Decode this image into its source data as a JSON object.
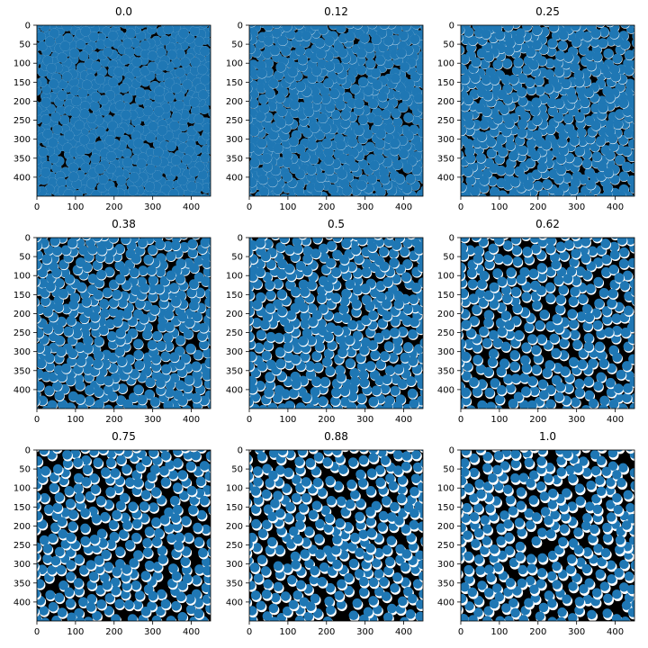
{
  "chart_data": [
    {
      "type": "scatter",
      "title": "0.0",
      "point_color": "#1f77b4",
      "background": "#000000",
      "overlay_color": "#ffffff",
      "reveal_fraction": 0.0,
      "density": 1.0,
      "seed": 101,
      "xlim": [
        0,
        450
      ],
      "ylim": [
        450,
        0
      ],
      "xticks": [
        0,
        100,
        200,
        300,
        400
      ],
      "yticks": [
        0,
        50,
        100,
        150,
        200,
        250,
        300,
        350,
        400
      ]
    },
    {
      "type": "scatter",
      "title": "0.12",
      "point_color": "#1f77b4",
      "background": "#000000",
      "overlay_color": "#ffffff",
      "reveal_fraction": 0.12,
      "density": 0.96,
      "seed": 202,
      "xlim": [
        0,
        450
      ],
      "ylim": [
        450,
        0
      ],
      "xticks": [
        0,
        100,
        200,
        300,
        400
      ],
      "yticks": [
        0,
        50,
        100,
        150,
        200,
        250,
        300,
        350,
        400
      ]
    },
    {
      "type": "scatter",
      "title": "0.25",
      "point_color": "#1f77b4",
      "background": "#000000",
      "overlay_color": "#ffffff",
      "reveal_fraction": 0.25,
      "density": 0.82,
      "seed": 303,
      "xlim": [
        0,
        450
      ],
      "ylim": [
        450,
        0
      ],
      "xticks": [
        0,
        100,
        200,
        300,
        400
      ],
      "yticks": [
        0,
        50,
        100,
        150,
        200,
        250,
        300,
        350,
        400
      ]
    },
    {
      "type": "scatter",
      "title": "0.38",
      "point_color": "#1f77b4",
      "background": "#000000",
      "overlay_color": "#ffffff",
      "reveal_fraction": 0.38,
      "density": 0.72,
      "seed": 404,
      "xlim": [
        0,
        450
      ],
      "ylim": [
        450,
        0
      ],
      "xticks": [
        0,
        100,
        200,
        300,
        400
      ],
      "yticks": [
        0,
        50,
        100,
        150,
        200,
        250,
        300,
        350,
        400
      ]
    },
    {
      "type": "scatter",
      "title": "0.5",
      "point_color": "#1f77b4",
      "background": "#000000",
      "overlay_color": "#ffffff",
      "reveal_fraction": 0.5,
      "density": 0.66,
      "seed": 505,
      "xlim": [
        0,
        450
      ],
      "ylim": [
        450,
        0
      ],
      "xticks": [
        0,
        100,
        200,
        300,
        400
      ],
      "yticks": [
        0,
        50,
        100,
        150,
        200,
        250,
        300,
        350,
        400
      ]
    },
    {
      "type": "scatter",
      "title": "0.62",
      "point_color": "#1f77b4",
      "background": "#000000",
      "overlay_color": "#ffffff",
      "reveal_fraction": 0.62,
      "density": 0.55,
      "seed": 606,
      "xlim": [
        0,
        450
      ],
      "ylim": [
        450,
        0
      ],
      "xticks": [
        0,
        100,
        200,
        300,
        400
      ],
      "yticks": [
        0,
        50,
        100,
        150,
        200,
        250,
        300,
        350,
        400
      ]
    },
    {
      "type": "scatter",
      "title": "0.75",
      "point_color": "#1f77b4",
      "background": "#000000",
      "overlay_color": "#ffffff",
      "reveal_fraction": 0.75,
      "density": 0.52,
      "seed": 707,
      "xlim": [
        0,
        450
      ],
      "ylim": [
        450,
        0
      ],
      "xticks": [
        0,
        100,
        200,
        300,
        400
      ],
      "yticks": [
        0,
        50,
        100,
        150,
        200,
        250,
        300,
        350,
        400
      ]
    },
    {
      "type": "scatter",
      "title": "0.88",
      "point_color": "#1f77b4",
      "background": "#000000",
      "overlay_color": "#ffffff",
      "reveal_fraction": 0.88,
      "density": 0.5,
      "seed": 808,
      "xlim": [
        0,
        450
      ],
      "ylim": [
        450,
        0
      ],
      "xticks": [
        0,
        100,
        200,
        300,
        400
      ],
      "yticks": [
        0,
        50,
        100,
        150,
        200,
        250,
        300,
        350,
        400
      ]
    },
    {
      "type": "scatter",
      "title": "1.0",
      "point_color": "#1f77b4",
      "background": "#000000",
      "overlay_color": "#ffffff",
      "reveal_fraction": 1.0,
      "density": 0.48,
      "seed": 909,
      "xlim": [
        0,
        450
      ],
      "ylim": [
        450,
        0
      ],
      "xticks": [
        0,
        100,
        200,
        300,
        400
      ],
      "yticks": [
        0,
        50,
        100,
        150,
        200,
        250,
        300,
        350,
        400
      ]
    }
  ]
}
